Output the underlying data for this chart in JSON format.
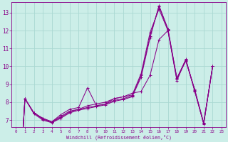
{
  "xlabel": "Windchill (Refroidissement éolien,°C)",
  "bg_color": "#cceee8",
  "grid_color": "#aad8d2",
  "line_color": "#880088",
  "spine_color": "#880088",
  "xlim": [
    -0.5,
    23.5
  ],
  "ylim": [
    6.6,
    13.6
  ],
  "xticks": [
    0,
    1,
    2,
    3,
    4,
    5,
    6,
    7,
    8,
    9,
    10,
    11,
    12,
    13,
    14,
    15,
    16,
    17,
    18,
    19,
    20,
    21,
    22,
    23
  ],
  "yticks": [
    7,
    8,
    9,
    10,
    11,
    12,
    13
  ],
  "series": [
    [
      0,
      8.2,
      7.4,
      7.1,
      6.9,
      7.3,
      7.6,
      7.7,
      8.8,
      7.8,
      7.9,
      8.2,
      8.3,
      8.5,
      8.6,
      9.5,
      11.5,
      12.0,
      9.2,
      10.4,
      8.6,
      6.8,
      10.0
    ],
    [
      0,
      8.2,
      7.4,
      7.1,
      6.9,
      7.2,
      7.5,
      7.6,
      7.8,
      7.9,
      8.0,
      8.2,
      8.3,
      8.4,
      9.6,
      11.9,
      13.2,
      12.0,
      9.3,
      10.3,
      8.7,
      6.85,
      10.0
    ],
    [
      0,
      8.2,
      7.4,
      7.05,
      6.88,
      7.15,
      7.45,
      7.6,
      7.7,
      7.8,
      7.9,
      8.1,
      8.2,
      8.35,
      9.5,
      11.7,
      13.35,
      12.05,
      9.3,
      10.35,
      8.65,
      6.82,
      10.0
    ],
    [
      0,
      8.2,
      7.35,
      7.0,
      6.85,
      7.1,
      7.4,
      7.55,
      7.65,
      7.75,
      7.85,
      8.05,
      8.15,
      8.3,
      9.4,
      11.6,
      13.4,
      12.1,
      9.35,
      10.38,
      8.68,
      6.78,
      10.0
    ]
  ],
  "x_start": 0
}
